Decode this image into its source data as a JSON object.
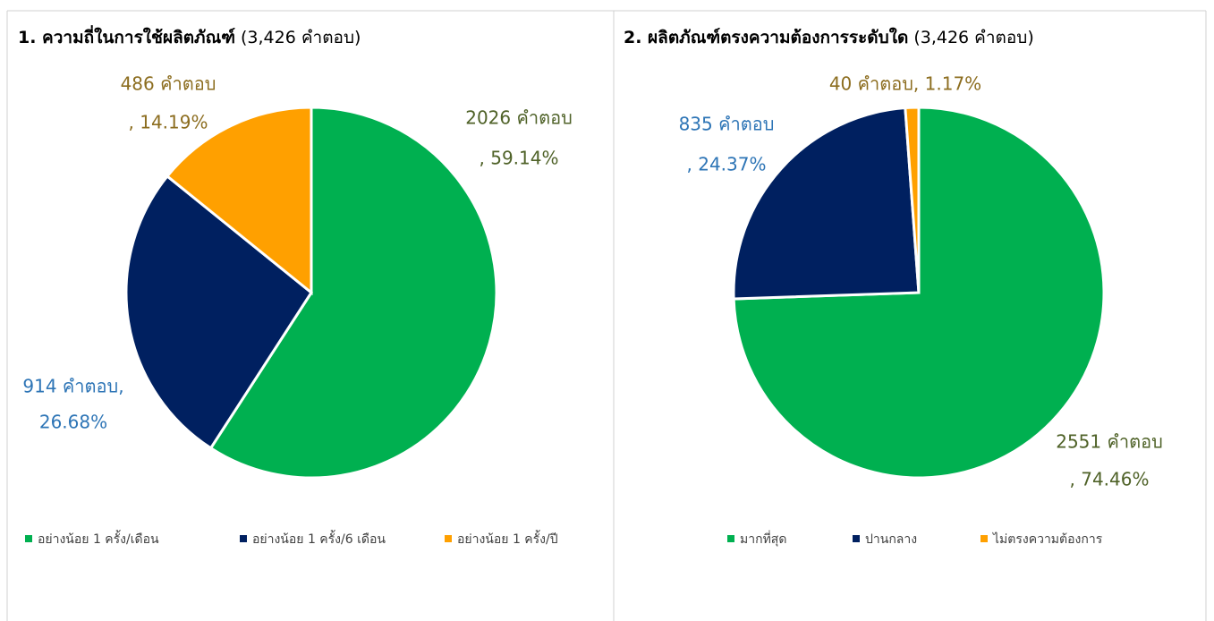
{
  "chart_data": [
    {
      "type": "pie",
      "title": "1. ความถี่ในการใช้ผลิตภัณฑ์",
      "subtitle": "(3,426 คำตอบ)",
      "categories": [
        "อย่างน้อย 1 ครั้ง/เดือน",
        "อย่างน้อย 1 ครั้ง/6 เดือน",
        "อย่างน้อย 1 ครั้ง/ปี"
      ],
      "values": [
        2026,
        914,
        486
      ],
      "value_labels": [
        [
          "2026 คำตอบ",
          ", 59.14%"
        ],
        [
          "914 คำตอบ,",
          "26.68%"
        ],
        [
          "486 คำตอบ",
          ", 14.19%"
        ]
      ],
      "colors": [
        "#00b050",
        "#002060",
        "#ffa000"
      ],
      "label_colors": [
        "#4f6228",
        "#2e75b6",
        "#8c6d1f"
      ],
      "legend": "bottom"
    },
    {
      "type": "pie",
      "title": "2. ผลิตภัณฑ์ตรงความต้องการระดับใด",
      "subtitle": "(3,426 คำตอบ)",
      "categories": [
        "มากที่สุด",
        "ปานกลาง",
        "ไม่ตรงความต้องการ"
      ],
      "values": [
        2551,
        835,
        40
      ],
      "value_labels": [
        [
          "2551 คำตอบ",
          ", 74.46%"
        ],
        [
          "835 คำตอบ",
          ", 24.37%"
        ],
        [
          "40 คำตอบ, 1.17%"
        ]
      ],
      "colors": [
        "#00b050",
        "#002060",
        "#ffa000"
      ],
      "label_colors": [
        "#4f6228",
        "#2e75b6",
        "#8c6d1f"
      ],
      "legend": "bottom"
    }
  ]
}
